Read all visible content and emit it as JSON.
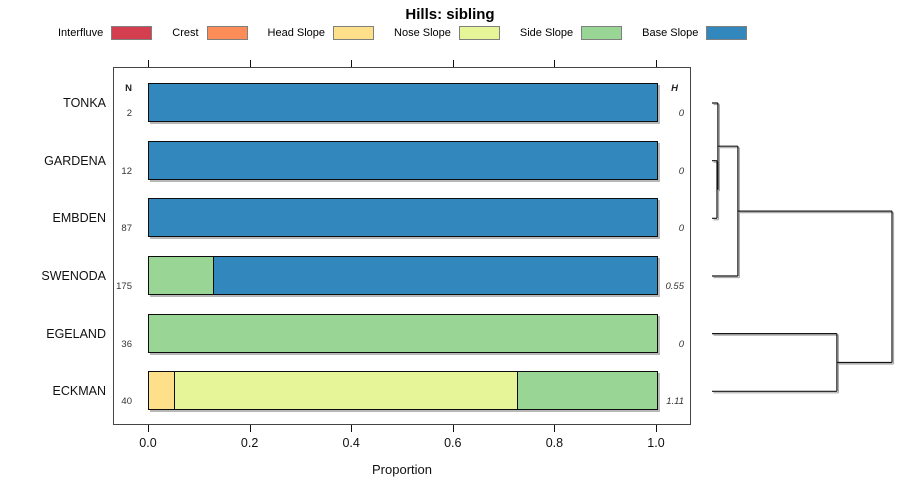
{
  "title": "Hills: sibling",
  "legend": {
    "items": [
      {
        "label": "Interfluve",
        "color": "#D53E4F"
      },
      {
        "label": "Crest",
        "color": "#FC8D59"
      },
      {
        "label": "Head Slope",
        "color": "#FEE08B"
      },
      {
        "label": "Nose Slope",
        "color": "#E6F598"
      },
      {
        "label": "Side Slope",
        "color": "#99D594"
      },
      {
        "label": "Base Slope",
        "color": "#3288BD"
      }
    ]
  },
  "columns": {
    "n_header": "N",
    "h_header": "H"
  },
  "axis": {
    "label": "Proportion",
    "ticks": [
      "0.0",
      "0.2",
      "0.4",
      "0.6",
      "0.8",
      "1.0"
    ],
    "tick_values": [
      0,
      0.2,
      0.4,
      0.6,
      0.8,
      1.0
    ]
  },
  "chart_data": {
    "type": "bar",
    "orientation": "horizontal-stacked",
    "title": "Hills: sibling",
    "xlabel": "Proportion",
    "xlim": [
      0,
      1
    ],
    "grid": false,
    "legend_position": "top",
    "categories": [
      "Interfluve",
      "Crest",
      "Head Slope",
      "Nose Slope",
      "Side Slope",
      "Base Slope"
    ],
    "category_colors": [
      "#D53E4F",
      "#FC8D59",
      "#FEE08B",
      "#E6F598",
      "#99D594",
      "#3288BD"
    ],
    "rows": [
      {
        "label": "TONKA",
        "n": "2",
        "h": "0",
        "segments": [
          {
            "category": "Base Slope",
            "value": 1.0
          }
        ]
      },
      {
        "label": "GARDENA",
        "n": "12",
        "h": "0",
        "segments": [
          {
            "category": "Base Slope",
            "value": 1.0
          }
        ]
      },
      {
        "label": "EMBDEN",
        "n": "87",
        "h": "0",
        "segments": [
          {
            "category": "Base Slope",
            "value": 1.0
          }
        ]
      },
      {
        "label": "SWENODA",
        "n": "175",
        "h": "0.55",
        "segments": [
          {
            "category": "Side Slope",
            "value": 0.125
          },
          {
            "category": "Base Slope",
            "value": 0.875
          }
        ]
      },
      {
        "label": "EGELAND",
        "n": "36",
        "h": "0",
        "segments": [
          {
            "category": "Side Slope",
            "value": 1.0
          }
        ]
      },
      {
        "label": "ECKMAN",
        "n": "40",
        "h": "1.11",
        "segments": [
          {
            "category": "Head Slope",
            "value": 0.05
          },
          {
            "category": "Nose Slope",
            "value": 0.675
          },
          {
            "category": "Side Slope",
            "value": 0.275
          }
        ]
      }
    ],
    "dendrogram": {
      "note": "segments as [h1,row1,h2,row2]; h is relative merge height 0..1, row is leaf row index 0..5",
      "segments": [
        [
          0,
          0,
          0.033,
          0
        ],
        [
          0,
          1,
          0.028,
          1
        ],
        [
          0,
          2,
          0.028,
          2
        ],
        [
          0.028,
          1,
          0.028,
          2
        ],
        [
          0.028,
          1.5,
          0.033,
          1.5
        ],
        [
          0.033,
          0,
          0.033,
          1.5
        ],
        [
          0.033,
          0.75,
          0.144,
          0.75
        ],
        [
          0,
          3,
          0.144,
          3
        ],
        [
          0.144,
          0.75,
          0.144,
          3
        ],
        [
          0.144,
          1.875,
          1,
          1.875
        ],
        [
          0,
          4,
          0.694,
          4
        ],
        [
          0,
          5,
          0.694,
          5
        ],
        [
          0.694,
          4,
          0.694,
          5
        ],
        [
          0.694,
          4.5,
          1,
          4.5
        ],
        [
          1,
          1.875,
          1,
          4.5
        ]
      ]
    }
  }
}
